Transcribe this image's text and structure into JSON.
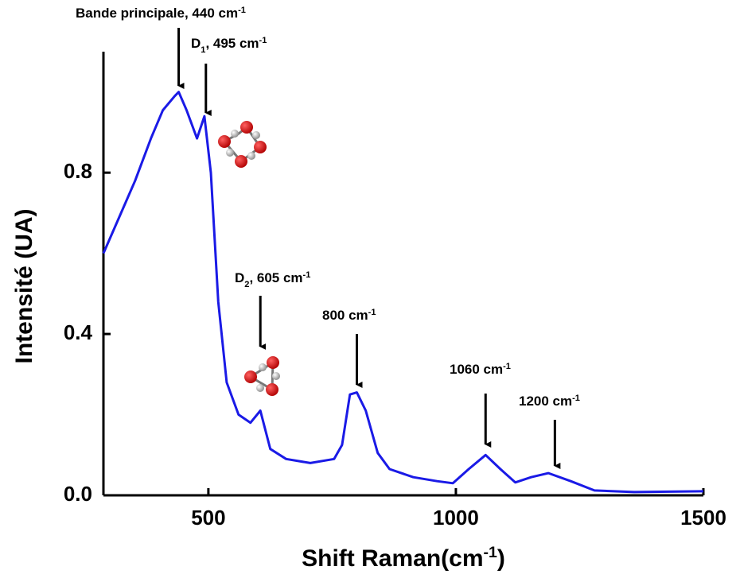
{
  "chart_data": {
    "type": "line",
    "xlabel": [
      {
        "text": "Shift Raman(cm"
      },
      {
        "text": "-1",
        "style": "sup"
      },
      {
        "text": ")"
      }
    ],
    "ylabel": [
      {
        "text": "Intensité (UA)"
      }
    ],
    "x": [
      288,
      320,
      352,
      384,
      408,
      432,
      440,
      456,
      477,
      492,
      505,
      520,
      537,
      561,
      585,
      605,
      625,
      657,
      706,
      754,
      770,
      786,
      800,
      818,
      842,
      866,
      914,
      962,
      994,
      1026,
      1060,
      1090,
      1120,
      1152,
      1187,
      1232,
      1280,
      1360,
      1500
    ],
    "values": [
      0.6,
      0.69,
      0.78,
      0.885,
      0.955,
      0.99,
      1.0,
      0.955,
      0.885,
      0.94,
      0.8,
      0.48,
      0.28,
      0.2,
      0.18,
      0.21,
      0.115,
      0.09,
      0.08,
      0.09,
      0.125,
      0.25,
      0.255,
      0.21,
      0.105,
      0.065,
      0.045,
      0.035,
      0.03,
      0.065,
      0.1,
      0.065,
      0.032,
      0.045,
      0.055,
      0.035,
      0.012,
      0.008,
      0.01
    ],
    "color": "#1a1ae6",
    "xlim": [
      288,
      1500
    ],
    "ylim": [
      0,
      1.1
    ],
    "xticks": [
      500,
      1000,
      1500
    ],
    "yticks": [
      {
        "value": 0,
        "label": "0.0"
      },
      0.4,
      0.8
    ],
    "annotations": [
      {
        "x": 440,
        "label": [
          {
            "text": "Bande principale, 440 cm"
          },
          {
            "text": "-1",
            "style": "sup"
          }
        ]
      },
      {
        "x": 495,
        "label": [
          {
            "text": "D"
          },
          {
            "text": "1",
            "style": "sub"
          },
          {
            "text": ", 495 cm"
          },
          {
            "text": "-1",
            "style": "sup"
          }
        ]
      },
      {
        "x": 605,
        "label": [
          {
            "text": "D"
          },
          {
            "text": "2",
            "style": "sub"
          },
          {
            "text": ", 605 cm"
          },
          {
            "text": "-1",
            "style": "sup"
          }
        ]
      },
      {
        "x": 800,
        "label": [
          {
            "text": "800 cm"
          },
          {
            "text": "-1",
            "style": "sup"
          }
        ]
      },
      {
        "x": 1060,
        "label": [
          {
            "text": "1060 cm"
          },
          {
            "text": "-1",
            "style": "sup"
          }
        ]
      },
      {
        "x": 1200,
        "label": [
          {
            "text": "1200 cm"
          },
          {
            "text": "-1",
            "style": "sup"
          }
        ]
      }
    ]
  }
}
